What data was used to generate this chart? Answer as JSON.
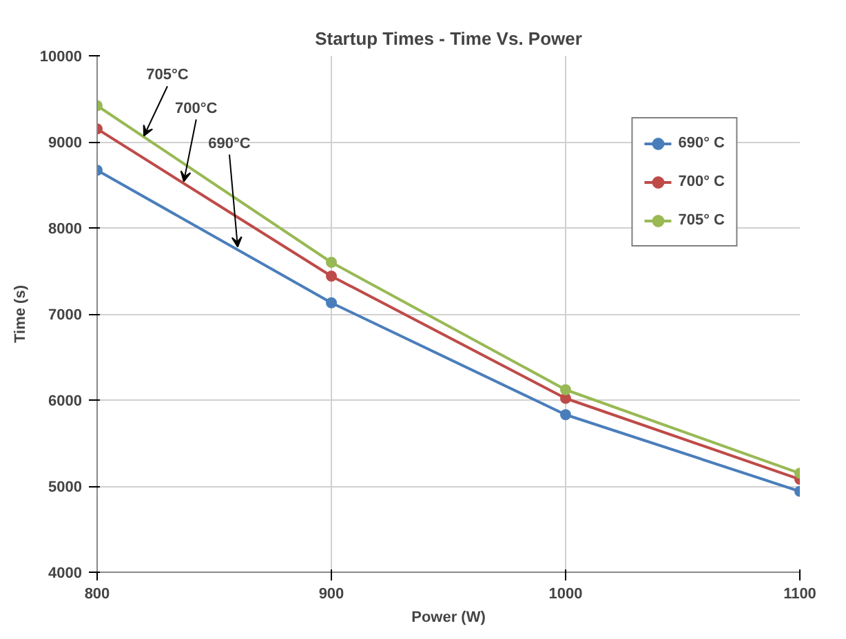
{
  "chart_data": {
    "type": "line",
    "title": "Startup Times - Time Vs. Power",
    "xlabel": "Power (W)",
    "ylabel": "Time (s)",
    "x": [
      800,
      900,
      1000,
      1100
    ],
    "series": [
      {
        "name": "690° C",
        "color": "#4a7ebb",
        "values": [
          8670,
          7130,
          5830,
          4940
        ]
      },
      {
        "name": "700° C",
        "color": "#be4b48",
        "values": [
          9150,
          7440,
          6020,
          5080
        ]
      },
      {
        "name": "705° C",
        "color": "#98b954",
        "values": [
          9420,
          7600,
          6120,
          5150
        ]
      }
    ],
    "annotations": [
      {
        "text": "705°C",
        "x": 820,
        "y": 9070
      },
      {
        "text": "700°C",
        "x": 837,
        "y": 8540
      },
      {
        "text": "690°C",
        "x": 860,
        "y": 7780
      }
    ],
    "xlim": [
      800,
      1100
    ],
    "xticks": [
      800,
      900,
      1000,
      1100
    ],
    "ylim": [
      4000,
      10000
    ],
    "yticks": [
      4000,
      5000,
      6000,
      7000,
      8000,
      9000,
      10000
    ],
    "grid": true,
    "legend": "top right",
    "marker": "circle",
    "line_style": "solid"
  }
}
